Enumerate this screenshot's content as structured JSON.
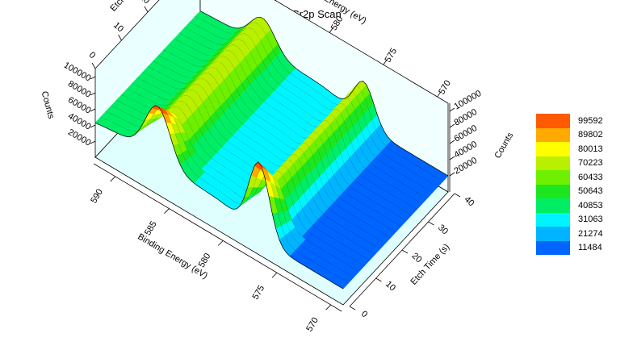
{
  "chart_data": {
    "type": "surface3d",
    "title": "Cr2p Scan",
    "x_axis": {
      "label": "Binding Energy (eV)",
      "ticks": [
        590,
        585,
        580,
        575,
        570
      ],
      "range": [
        592,
        569
      ]
    },
    "y_axis": {
      "label": "Etch Time (s)",
      "ticks": [
        0,
        10,
        20,
        30,
        40
      ],
      "range": [
        0,
        40
      ]
    },
    "z_axis": {
      "label": "Counts",
      "ticks": [
        20000,
        40000,
        60000,
        80000,
        100000
      ],
      "range": [
        10000,
        110000
      ]
    },
    "back_x_ticks": [
      590,
      585,
      580,
      575,
      570
    ],
    "back_y_ticks": [
      0,
      10,
      20,
      30,
      40
    ],
    "back_z_ticks": [
      20000,
      40000,
      60000,
      80000,
      100000
    ],
    "etch_times": [
      0,
      2,
      4,
      6,
      8,
      10,
      12,
      14,
      16,
      18,
      20,
      22,
      24,
      26,
      28,
      30,
      32,
      34,
      36,
      38,
      40
    ],
    "spectrum_model": {
      "peak_2p1_2_eV": 586.2,
      "peak_2p3_2_eV": 576.8,
      "early_scan_peaks_counts": [
        68000,
        92000
      ],
      "late_scan_peaks_counts": [
        38000,
        52000
      ],
      "baseline_low_eV_counts": 20000,
      "baseline_high_eV_counts": 40000
    },
    "legend": {
      "values": [
        99592,
        89802,
        80013,
        70223,
        60433,
        50643,
        40853,
        31063,
        21274,
        11484
      ],
      "colors": [
        "#ff5a00",
        "#ffaa00",
        "#ffff00",
        "#b8f000",
        "#6ef000",
        "#1ee61e",
        "#00ee66",
        "#00f4ff",
        "#00b4ff",
        "#0064ff"
      ]
    }
  }
}
